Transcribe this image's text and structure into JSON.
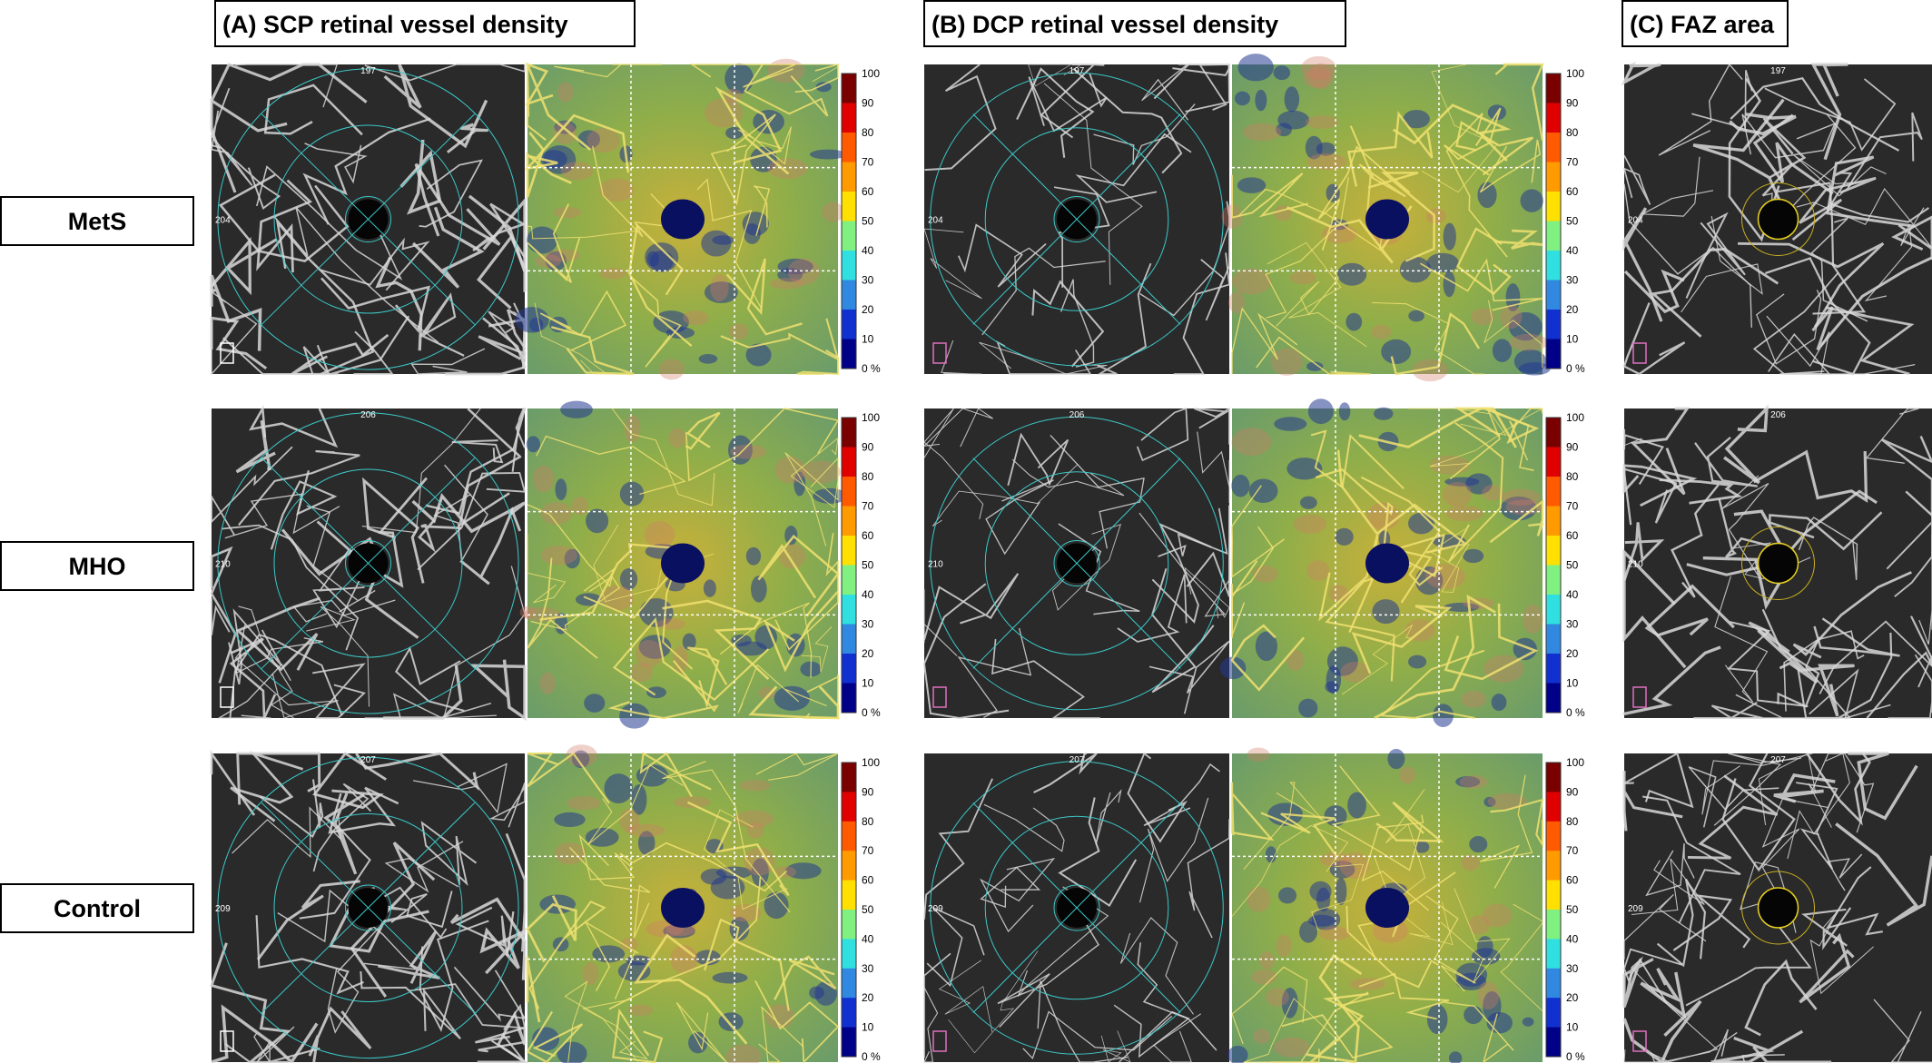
{
  "panels": [
    {
      "title": "(A) SCP retinal vessel density"
    },
    {
      "title": "(B) DCP retinal vessel density"
    },
    {
      "title": "(C) FAZ area"
    }
  ],
  "rows": [
    {
      "label": "MetS",
      "top_value": "197",
      "left_value": "204"
    },
    {
      "label": "MHO",
      "top_value": "206",
      "left_value": "210"
    },
    {
      "label": "Control",
      "top_value": "207",
      "left_value": "209"
    }
  ],
  "colorbar": {
    "labels": [
      "100",
      "90",
      "80",
      "70",
      "60",
      "50",
      "40",
      "30",
      "20",
      "10",
      "0 %"
    ]
  }
}
